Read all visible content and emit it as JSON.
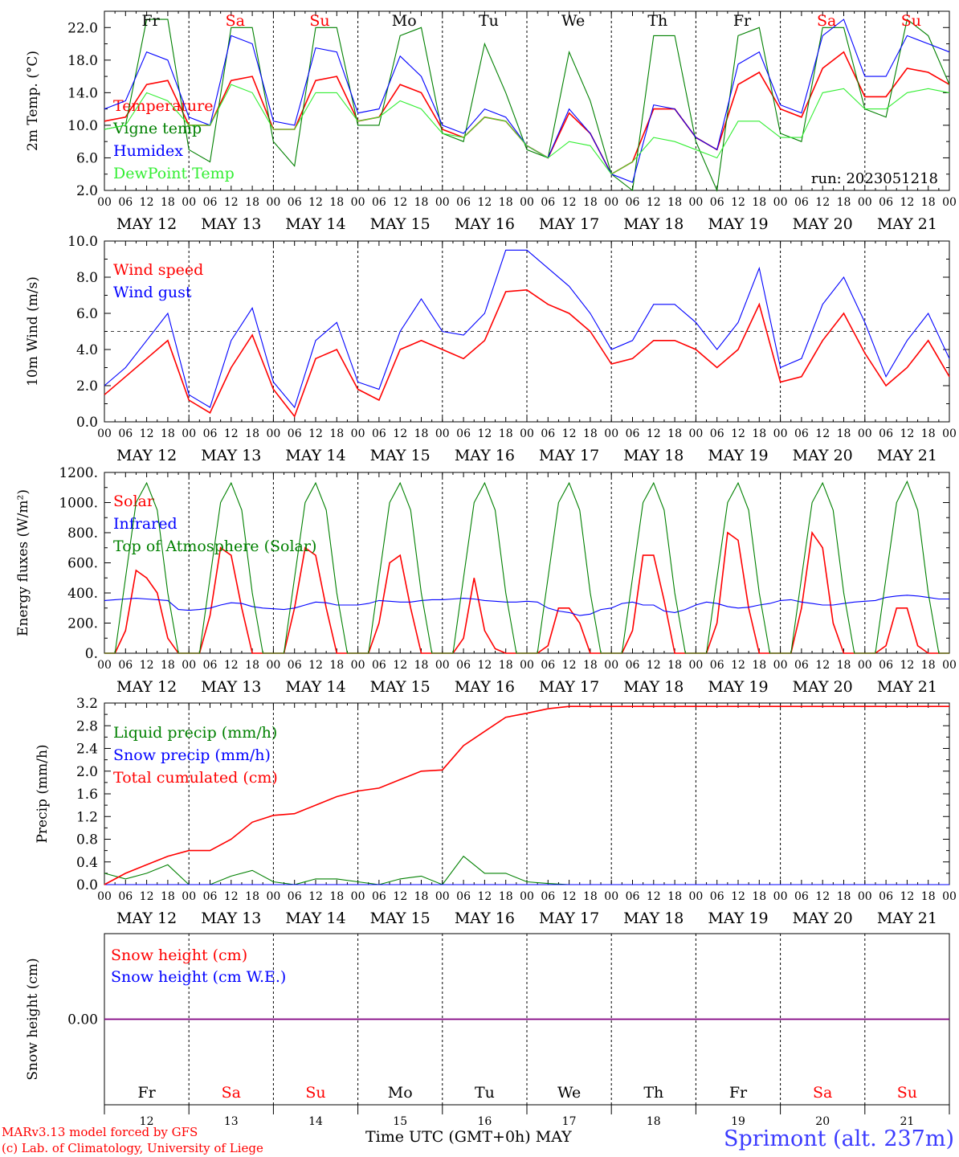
{
  "chart_data": [
    {
      "type": "line",
      "ylabel": "2m Temp. (°C)",
      "ylim": [
        2.0,
        24.0
      ],
      "yticks": [
        "2.0",
        "6.0",
        "10.0",
        "14.0",
        "18.0",
        "22.0"
      ],
      "annotation": "run: 2023051218",
      "x_hours": [
        0,
        6,
        12,
        18,
        24,
        30,
        36,
        42,
        48,
        54,
        60,
        66,
        72,
        78,
        84,
        90,
        96,
        102,
        108,
        114,
        120,
        126,
        132,
        138,
        144,
        150,
        156,
        162,
        168,
        174,
        180,
        186,
        192,
        198,
        204,
        210,
        216,
        222,
        228,
        234,
        240
      ],
      "series": [
        {
          "name": "Temperature",
          "color": "#ff0000",
          "values": [
            10.5,
            11,
            15,
            15.5,
            10,
            10,
            15.5,
            16,
            9.5,
            9.5,
            15.5,
            16,
            10.5,
            11,
            15,
            14,
            9.5,
            8.5,
            11,
            10.5,
            7.5,
            6,
            11.5,
            9,
            4,
            5.5,
            12,
            12,
            8.5,
            7,
            15,
            16.5,
            12,
            11,
            17,
            19,
            13.5,
            13.5,
            17,
            16.5,
            15
          ]
        },
        {
          "name": "Vigne temp",
          "color": "#008000",
          "values": [
            9.5,
            10,
            23,
            23,
            7,
            5.5,
            22,
            22,
            8,
            5,
            22,
            22,
            10,
            10,
            21,
            22,
            9,
            8,
            20,
            14,
            7,
            6,
            19,
            13,
            4,
            2,
            21,
            21,
            8,
            2,
            21,
            22,
            9,
            8,
            22,
            22,
            12,
            11,
            23,
            21,
            15
          ]
        },
        {
          "name": "Humidex",
          "color": "#0000ff",
          "values": [
            12,
            13,
            19,
            18,
            11,
            10,
            21,
            20,
            10.5,
            10,
            19.5,
            19,
            11.5,
            12,
            18.5,
            16,
            10,
            9,
            12,
            11,
            7.5,
            6,
            12,
            9,
            4,
            3,
            12.5,
            12,
            8.5,
            7,
            17.5,
            19,
            12.5,
            11.5,
            21,
            23,
            16,
            16,
            21,
            20,
            19
          ]
        },
        {
          "name": "DewPoint Temp",
          "color": "#33ee33",
          "values": [
            9.5,
            10,
            14,
            13,
            10,
            10,
            15,
            14,
            9.5,
            9.5,
            14,
            14,
            10.5,
            11,
            13,
            12,
            9,
            8.5,
            11,
            10.5,
            7.5,
            6,
            8,
            7.5,
            4,
            5.5,
            8.5,
            8,
            7,
            6,
            10.5,
            10.5,
            8.5,
            8.5,
            14,
            14.5,
            12,
            12,
            14,
            14.5,
            14
          ]
        }
      ]
    },
    {
      "type": "line",
      "ylabel": "10m Wind (m/s)",
      "ylim": [
        0.0,
        10.0
      ],
      "yticks": [
        "0.0",
        "2.0",
        "4.0",
        "6.0",
        "8.0",
        "10.0"
      ],
      "x_hours": [
        0,
        6,
        12,
        18,
        24,
        30,
        36,
        42,
        48,
        54,
        60,
        66,
        72,
        78,
        84,
        90,
        96,
        102,
        108,
        114,
        120,
        126,
        132,
        138,
        144,
        150,
        156,
        162,
        168,
        174,
        180,
        186,
        192,
        198,
        204,
        210,
        216,
        222,
        228,
        234,
        240
      ],
      "series": [
        {
          "name": "Wind speed",
          "color": "#ff0000",
          "values": [
            1.5,
            2.5,
            3.5,
            4.5,
            1.2,
            0.5,
            3,
            4.8,
            1.8,
            0.3,
            3.5,
            4,
            1.8,
            1.2,
            4,
            4.5,
            4,
            3.5,
            4.5,
            7.2,
            7.3,
            6.5,
            6,
            5,
            3.2,
            3.5,
            4.5,
            4.5,
            4,
            3,
            4,
            6.5,
            2.2,
            2.5,
            4.5,
            6,
            3.8,
            2,
            3,
            4.5,
            2.5
          ]
        },
        {
          "name": "Wind gust",
          "color": "#0000ff",
          "values": [
            2,
            3,
            4.5,
            6,
            1.5,
            0.8,
            4.5,
            6.3,
            2.2,
            0.8,
            4.5,
            5.5,
            2.2,
            1.8,
            5,
            6.8,
            5,
            4.8,
            6,
            9.5,
            9.5,
            8.5,
            7.5,
            6,
            4,
            4.5,
            6.5,
            6.5,
            5.5,
            4,
            5.5,
            8.5,
            3,
            3.5,
            6.5,
            8,
            5.5,
            2.5,
            4.5,
            6,
            3.5
          ]
        }
      ]
    },
    {
      "type": "line",
      "ylabel": "Energy fluxes (W/m²)",
      "ylim": [
        0,
        1200
      ],
      "yticks": [
        "0.",
        "200.",
        "400.",
        "600.",
        "800.",
        "1000.",
        "1200."
      ],
      "x_hours": [
        0,
        3,
        6,
        9,
        12,
        15,
        18,
        21,
        24,
        27,
        30,
        33,
        36,
        39,
        42,
        45,
        48,
        51,
        54,
        57,
        60,
        63,
        66,
        69,
        72,
        75,
        78,
        81,
        84,
        87,
        90,
        93,
        96,
        99,
        102,
        105,
        108,
        111,
        114,
        117,
        120,
        123,
        126,
        129,
        132,
        135,
        138,
        141,
        144,
        147,
        150,
        153,
        156,
        159,
        162,
        165,
        168,
        171,
        174,
        177,
        180,
        183,
        186,
        189,
        192,
        195,
        198,
        201,
        204,
        207,
        210,
        213,
        216,
        219,
        222,
        225,
        228,
        231,
        234,
        237,
        240
      ],
      "series": [
        {
          "name": "Solar",
          "color": "#ff0000",
          "values": [
            0,
            0,
            150,
            550,
            500,
            400,
            100,
            0,
            0,
            0,
            250,
            700,
            650,
            300,
            0,
            0,
            0,
            0,
            300,
            700,
            650,
            300,
            0,
            0,
            0,
            0,
            200,
            600,
            650,
            300,
            0,
            0,
            0,
            0,
            100,
            500,
            150,
            30,
            0,
            0,
            0,
            0,
            50,
            300,
            300,
            200,
            0,
            0,
            0,
            0,
            150,
            650,
            650,
            350,
            0,
            0,
            0,
            0,
            200,
            800,
            750,
            300,
            0,
            0,
            0,
            0,
            300,
            800,
            700,
            200,
            0,
            0,
            0,
            0,
            50,
            300,
            300,
            50,
            0,
            0,
            0
          ]
        },
        {
          "name": "Infrared",
          "color": "#0000ff",
          "values": [
            350,
            355,
            360,
            365,
            360,
            355,
            350,
            290,
            285,
            290,
            300,
            320,
            335,
            330,
            310,
            300,
            295,
            290,
            300,
            320,
            340,
            335,
            320,
            320,
            320,
            330,
            350,
            345,
            340,
            340,
            350,
            355,
            355,
            360,
            365,
            360,
            350,
            345,
            340,
            340,
            345,
            340,
            300,
            280,
            270,
            250,
            260,
            290,
            300,
            330,
            340,
            320,
            320,
            280,
            270,
            290,
            320,
            340,
            330,
            310,
            300,
            305,
            320,
            330,
            350,
            355,
            340,
            330,
            320,
            320,
            330,
            340,
            345,
            350,
            370,
            380,
            385,
            380,
            370,
            360,
            360
          ]
        },
        {
          "name": "Top of Atmosphere (Solar)",
          "color": "#008000",
          "values": [
            0,
            0,
            500,
            1000,
            1130,
            950,
            400,
            0,
            0,
            0,
            500,
            1000,
            1130,
            950,
            400,
            0,
            0,
            0,
            500,
            1000,
            1130,
            950,
            400,
            0,
            0,
            0,
            500,
            1000,
            1130,
            950,
            400,
            0,
            0,
            0,
            500,
            1000,
            1130,
            950,
            400,
            0,
            0,
            0,
            500,
            1000,
            1130,
            950,
            400,
            0,
            0,
            0,
            500,
            1000,
            1130,
            950,
            400,
            0,
            0,
            0,
            500,
            1000,
            1130,
            950,
            400,
            0,
            0,
            0,
            500,
            1000,
            1130,
            950,
            400,
            0,
            0,
            0,
            500,
            1000,
            1140,
            950,
            400,
            0,
            0
          ]
        }
      ]
    },
    {
      "type": "line",
      "ylabel": "Precip (mm/h)",
      "ylim": [
        0.0,
        3.2
      ],
      "yticks": [
        "0.0",
        "0.4",
        "0.8",
        "1.2",
        "1.6",
        "2.0",
        "2.4",
        "2.8",
        "3.2"
      ],
      "x_hours": [
        0,
        6,
        12,
        18,
        24,
        30,
        36,
        42,
        48,
        54,
        60,
        66,
        72,
        78,
        84,
        90,
        96,
        102,
        108,
        114,
        120,
        126,
        132,
        138,
        144,
        150,
        156,
        162,
        168,
        174,
        180,
        186,
        192,
        198,
        204,
        210,
        216,
        222,
        228,
        234,
        240
      ],
      "series": [
        {
          "name": "Liquid precip (mm/h)",
          "color": "#008000",
          "values": [
            0.2,
            0.1,
            0.2,
            0.35,
            0,
            0,
            0.15,
            0.25,
            0.05,
            0,
            0.1,
            0.1,
            0.05,
            0,
            0.1,
            0.15,
            0,
            0.5,
            0.2,
            0.2,
            0.05,
            0.02,
            0,
            0,
            0,
            0,
            0,
            0,
            0,
            0,
            0,
            0,
            0,
            0,
            0,
            0,
            0,
            0,
            0,
            0,
            0
          ]
        },
        {
          "name": "Snow precip (mm/h)",
          "color": "#0000ff",
          "values": [
            0,
            0,
            0,
            0,
            0,
            0,
            0,
            0,
            0,
            0,
            0,
            0,
            0,
            0,
            0,
            0,
            0,
            0,
            0,
            0,
            0,
            0,
            0,
            0,
            0,
            0,
            0,
            0,
            0,
            0,
            0,
            0,
            0,
            0,
            0,
            0,
            0,
            0,
            0,
            0,
            0
          ]
        },
        {
          "name": "Total cumulated (cm)",
          "color": "#ff0000",
          "values": [
            0,
            0.2,
            0.35,
            0.5,
            0.6,
            0.6,
            0.8,
            1.1,
            1.22,
            1.25,
            1.4,
            1.55,
            1.65,
            1.7,
            1.85,
            2.0,
            2.02,
            2.45,
            2.7,
            2.95,
            3.02,
            3.1,
            3.14,
            3.14,
            3.14,
            3.14,
            3.14,
            3.14,
            3.14,
            3.14,
            3.14,
            3.14,
            3.14,
            3.14,
            3.14,
            3.14,
            3.14,
            3.14,
            3.14,
            3.14,
            3.14
          ]
        }
      ]
    },
    {
      "type": "line",
      "ylabel": "Snow height (cm)",
      "yticks": [
        "0.00"
      ],
      "series": [
        {
          "name": "Snow height (cm)",
          "color": "#ff0000",
          "values": [
            0,
            0
          ]
        },
        {
          "name": "Snow height (cm W.E.)",
          "color": "#0000ff",
          "values": [
            0,
            0
          ]
        }
      ]
    }
  ],
  "days": [
    {
      "abbr": "Fr",
      "color": "#000000",
      "date": "MAY 12",
      "num": "12"
    },
    {
      "abbr": "Sa",
      "color": "#ff0000",
      "date": "MAY 13",
      "num": "13"
    },
    {
      "abbr": "Su",
      "color": "#ff0000",
      "date": "MAY 14",
      "num": "14"
    },
    {
      "abbr": "Mo",
      "color": "#000000",
      "date": "MAY 15",
      "num": "15"
    },
    {
      "abbr": "Tu",
      "color": "#000000",
      "date": "MAY 16",
      "num": "16"
    },
    {
      "abbr": "We",
      "color": "#000000",
      "date": "MAY 17",
      "num": "17"
    },
    {
      "abbr": "Th",
      "color": "#000000",
      "date": "MAY 18",
      "num": "18"
    },
    {
      "abbr": "Fr",
      "color": "#000000",
      "date": "MAY 19",
      "num": "19"
    },
    {
      "abbr": "Sa",
      "color": "#ff0000",
      "date": "MAY 20",
      "num": "20"
    },
    {
      "abbr": "Su",
      "color": "#ff0000",
      "date": "MAY 21",
      "num": "21"
    }
  ],
  "hour_labels": [
    "00",
    "06",
    "12",
    "18"
  ],
  "footer": {
    "credit_line1": "MARv3.13 model forced by GFS",
    "credit_line2": "(c) Lab. of Climatology, University of Liege",
    "axis_label": "Time UTC (GMT+0h)",
    "month": "MAY",
    "station": "Sprimont (alt. 237m)"
  }
}
